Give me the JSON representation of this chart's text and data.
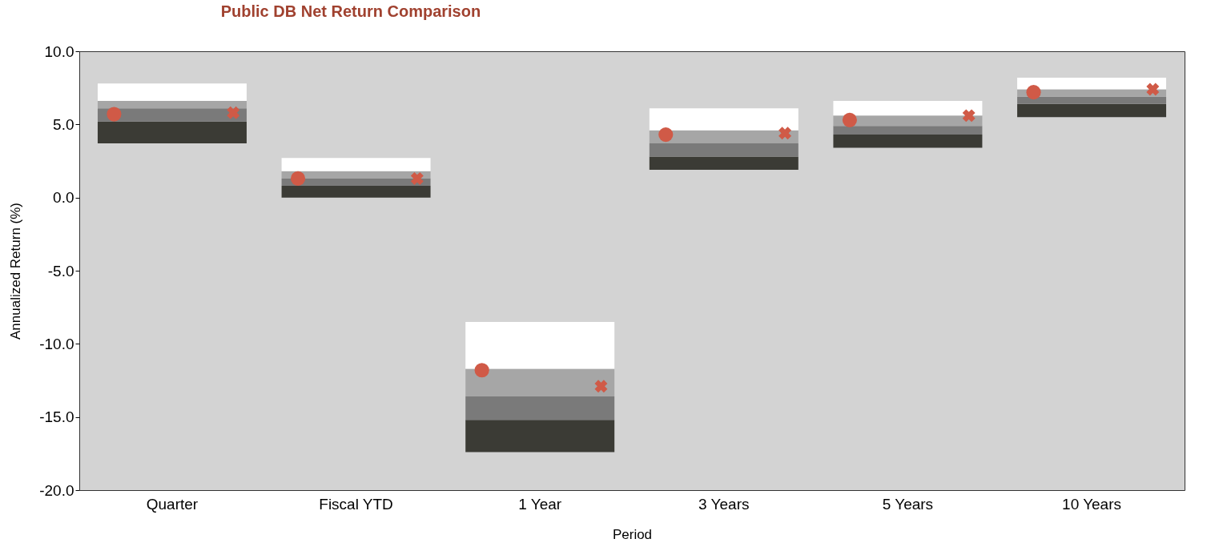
{
  "chart_data": {
    "type": "bar",
    "title": "Public DB Net Return Comparison",
    "xlabel": "Period",
    "ylabel": "Annualized Return (%)",
    "categories": [
      "Quarter",
      "Fiscal YTD",
      "1 Year",
      "3 Years",
      "5 Years",
      "10 Years"
    ],
    "ylim": [
      -20,
      10
    ],
    "yticks": [
      {
        "value": -20,
        "label": "-20.0"
      },
      {
        "value": -15,
        "label": "-15.0"
      },
      {
        "value": -10,
        "label": "-10.0"
      },
      {
        "value": -5,
        "label": "-5.0"
      },
      {
        "value": 0,
        "label": "0.0"
      },
      {
        "value": 5,
        "label": "5.0"
      },
      {
        "value": 10,
        "label": "10.0"
      }
    ],
    "grid": false,
    "series": [
      {
        "color": "#3b3b35",
        "base": [
          3.7,
          0.0,
          -17.4,
          1.9,
          3.4,
          5.5
        ],
        "values": [
          1.5,
          0.8,
          2.2,
          0.9,
          0.9,
          0.9
        ]
      },
      {
        "color": "#7a7a7a",
        "base": [
          5.2,
          0.8,
          -15.2,
          2.8,
          4.3,
          6.4
        ],
        "values": [
          0.9,
          0.5,
          1.6,
          0.9,
          0.6,
          0.5
        ]
      },
      {
        "color": "#a6a6a6",
        "base": [
          6.1,
          1.3,
          -13.6,
          3.7,
          4.9,
          6.9
        ],
        "values": [
          0.5,
          0.5,
          1.9,
          0.9,
          0.7,
          0.5
        ]
      },
      {
        "color": "#ffffff",
        "base": [
          6.6,
          1.8,
          -11.7,
          4.6,
          5.6,
          7.4
        ],
        "values": [
          1.2,
          0.9,
          3.2,
          1.5,
          1.0,
          0.8
        ]
      },
      {
        "type": "scatter",
        "marker": "circle",
        "color": "#d05a47",
        "x": [
          "Quarter",
          "Fiscal YTD",
          "1 Year",
          "3 Years",
          "5 Years",
          "10 Years"
        ],
        "values": [
          5.7,
          1.3,
          -11.8,
          4.3,
          5.3,
          7.2
        ]
      },
      {
        "type": "scatter",
        "marker": "cross",
        "color": "#d05a47",
        "x": [
          "Quarter",
          "Fiscal YTD",
          "1 Year",
          "3 Years",
          "5 Years",
          "10 Years"
        ],
        "values": [
          5.8,
          1.3,
          -12.9,
          4.4,
          5.6,
          7.4
        ]
      }
    ]
  }
}
